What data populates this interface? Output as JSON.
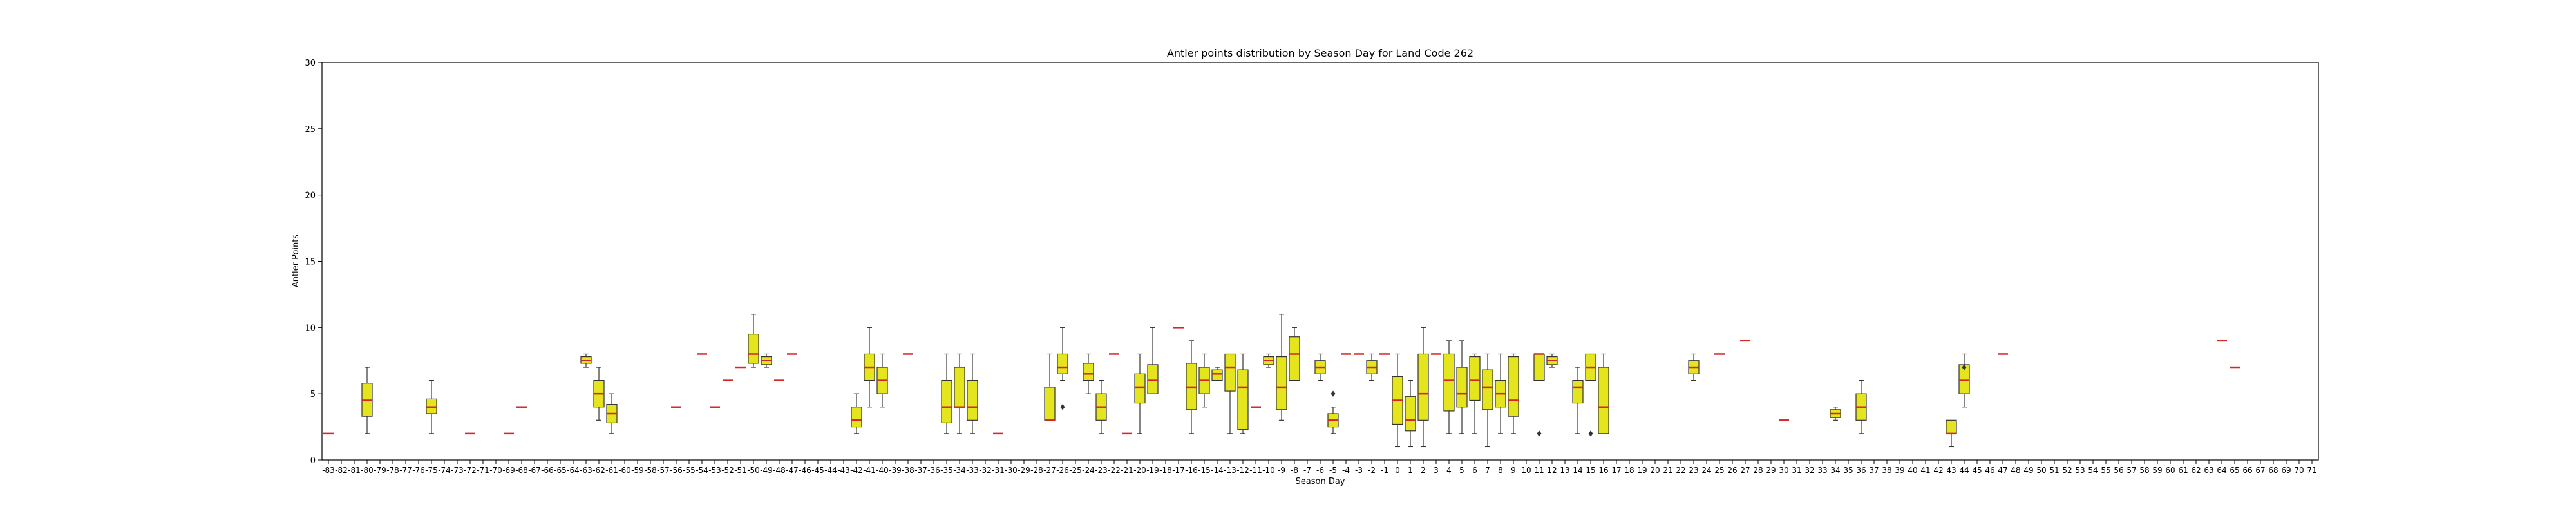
{
  "chart_data": {
    "type": "box",
    "title": "Antler points distribution by Season Day for Land Code 262",
    "xlabel": "Season Day",
    "ylabel": "Antler Points",
    "ylim": [
      0,
      30
    ],
    "yticks": [
      0,
      5,
      10,
      15,
      20,
      25,
      30
    ],
    "x_categories_range": [
      -83,
      71
    ],
    "grid": false,
    "legend": "none",
    "colors": {
      "box_fill": "#e5e51e",
      "median": "#d62728",
      "edge": "#333333",
      "axes": "#000000"
    },
    "boxes": [
      {
        "day": -83,
        "min": 2,
        "q1": 2,
        "median": 2,
        "q3": 2,
        "max": 2,
        "outliers": []
      },
      {
        "day": -80,
        "min": 2,
        "q1": 3.3,
        "median": 4.5,
        "q3": 5.8,
        "max": 7,
        "outliers": []
      },
      {
        "day": -75,
        "min": 2,
        "q1": 3.5,
        "median": 4,
        "q3": 4.6,
        "max": 6,
        "outliers": []
      },
      {
        "day": -72,
        "min": 2,
        "q1": 2,
        "median": 2,
        "q3": 2,
        "max": 2,
        "outliers": []
      },
      {
        "day": -69,
        "min": 2,
        "q1": 2,
        "median": 2,
        "q3": 2,
        "max": 2,
        "outliers": []
      },
      {
        "day": -68,
        "min": 4,
        "q1": 4,
        "median": 4,
        "q3": 4,
        "max": 4,
        "outliers": []
      },
      {
        "day": -63,
        "min": 7,
        "q1": 7.3,
        "median": 7.5,
        "q3": 7.8,
        "max": 8,
        "outliers": []
      },
      {
        "day": -62,
        "min": 3,
        "q1": 4,
        "median": 5,
        "q3": 6,
        "max": 7,
        "outliers": []
      },
      {
        "day": -61,
        "min": 2,
        "q1": 2.8,
        "median": 3.5,
        "q3": 4.2,
        "max": 5,
        "outliers": []
      },
      {
        "day": -56,
        "min": 4,
        "q1": 4,
        "median": 4,
        "q3": 4,
        "max": 4,
        "outliers": []
      },
      {
        "day": -54,
        "min": 8,
        "q1": 8,
        "median": 8,
        "q3": 8,
        "max": 8,
        "outliers": []
      },
      {
        "day": -53,
        "min": 4,
        "q1": 4,
        "median": 4,
        "q3": 4,
        "max": 4,
        "outliers": []
      },
      {
        "day": -52,
        "min": 6,
        "q1": 6,
        "median": 6,
        "q3": 6,
        "max": 6,
        "outliers": []
      },
      {
        "day": -51,
        "min": 7,
        "q1": 7,
        "median": 7,
        "q3": 7,
        "max": 7,
        "outliers": []
      },
      {
        "day": -50,
        "min": 7,
        "q1": 7.3,
        "median": 8,
        "q3": 9.5,
        "max": 11,
        "outliers": []
      },
      {
        "day": -49,
        "min": 7,
        "q1": 7.2,
        "median": 7.5,
        "q3": 7.8,
        "max": 8,
        "outliers": []
      },
      {
        "day": -48,
        "min": 6,
        "q1": 6,
        "median": 6,
        "q3": 6,
        "max": 6,
        "outliers": []
      },
      {
        "day": -47,
        "min": 8,
        "q1": 8,
        "median": 8,
        "q3": 8,
        "max": 8,
        "outliers": []
      },
      {
        "day": -42,
        "min": 2,
        "q1": 2.5,
        "median": 3,
        "q3": 4,
        "max": 5,
        "outliers": []
      },
      {
        "day": -41,
        "min": 4,
        "q1": 6,
        "median": 7,
        "q3": 8,
        "max": 10,
        "outliers": []
      },
      {
        "day": -40,
        "min": 4,
        "q1": 5,
        "median": 6,
        "q3": 7,
        "max": 8,
        "outliers": []
      },
      {
        "day": -38,
        "min": 8,
        "q1": 8,
        "median": 8,
        "q3": 8,
        "max": 8,
        "outliers": []
      },
      {
        "day": -35,
        "min": 2,
        "q1": 2.8,
        "median": 4,
        "q3": 6,
        "max": 8,
        "outliers": []
      },
      {
        "day": -34,
        "min": 2,
        "q1": 4,
        "median": 4,
        "q3": 7,
        "max": 8,
        "outliers": []
      },
      {
        "day": -33,
        "min": 2,
        "q1": 3,
        "median": 4,
        "q3": 6,
        "max": 8,
        "outliers": []
      },
      {
        "day": -31,
        "min": 2,
        "q1": 2,
        "median": 2,
        "q3": 2,
        "max": 2,
        "outliers": []
      },
      {
        "day": -27,
        "min": 3,
        "q1": 3,
        "median": 3,
        "q3": 5.5,
        "max": 8,
        "outliers": []
      },
      {
        "day": -26,
        "min": 6,
        "q1": 6.5,
        "median": 7,
        "q3": 8,
        "max": 10,
        "outliers": [
          4
        ]
      },
      {
        "day": -24,
        "min": 5,
        "q1": 6,
        "median": 6.5,
        "q3": 7.3,
        "max": 8,
        "outliers": []
      },
      {
        "day": -23,
        "min": 2,
        "q1": 3,
        "median": 4,
        "q3": 5,
        "max": 6,
        "outliers": []
      },
      {
        "day": -22,
        "min": 8,
        "q1": 8,
        "median": 8,
        "q3": 8,
        "max": 8,
        "outliers": []
      },
      {
        "day": -21,
        "min": 2,
        "q1": 2,
        "median": 2,
        "q3": 2,
        "max": 2,
        "outliers": []
      },
      {
        "day": -20,
        "min": 2,
        "q1": 4.3,
        "median": 5.5,
        "q3": 6.5,
        "max": 8,
        "outliers": []
      },
      {
        "day": -19,
        "min": 5,
        "q1": 5,
        "median": 6,
        "q3": 7.2,
        "max": 10,
        "outliers": []
      },
      {
        "day": -17,
        "min": 10,
        "q1": 10,
        "median": 10,
        "q3": 10,
        "max": 10,
        "outliers": []
      },
      {
        "day": -16,
        "min": 2,
        "q1": 3.8,
        "median": 5.5,
        "q3": 7.3,
        "max": 9,
        "outliers": []
      },
      {
        "day": -15,
        "min": 4,
        "q1": 5,
        "median": 6,
        "q3": 7,
        "max": 8,
        "outliers": []
      },
      {
        "day": -14,
        "min": 6,
        "q1": 6,
        "median": 6.5,
        "q3": 6.8,
        "max": 7,
        "outliers": []
      },
      {
        "day": -13,
        "min": 2,
        "q1": 5.2,
        "median": 7,
        "q3": 8,
        "max": 8,
        "outliers": []
      },
      {
        "day": -12,
        "min": 2,
        "q1": 2.3,
        "median": 5.5,
        "q3": 6.8,
        "max": 8,
        "outliers": []
      },
      {
        "day": -11,
        "min": 4,
        "q1": 4,
        "median": 4,
        "q3": 4,
        "max": 4,
        "outliers": []
      },
      {
        "day": -10,
        "min": 7,
        "q1": 7.2,
        "median": 7.5,
        "q3": 7.8,
        "max": 8,
        "outliers": []
      },
      {
        "day": -9,
        "min": 3,
        "q1": 3.8,
        "median": 5.5,
        "q3": 7.8,
        "max": 11,
        "outliers": []
      },
      {
        "day": -8,
        "min": 6,
        "q1": 6,
        "median": 8,
        "q3": 9.3,
        "max": 10,
        "outliers": []
      },
      {
        "day": -6,
        "min": 6,
        "q1": 6.5,
        "median": 7,
        "q3": 7.5,
        "max": 8,
        "outliers": []
      },
      {
        "day": -5,
        "min": 2,
        "q1": 2.5,
        "median": 3,
        "q3": 3.5,
        "max": 4,
        "outliers": [
          5
        ]
      },
      {
        "day": -4,
        "min": 8,
        "q1": 8,
        "median": 8,
        "q3": 8,
        "max": 8,
        "outliers": []
      },
      {
        "day": -3,
        "min": 8,
        "q1": 8,
        "median": 8,
        "q3": 8,
        "max": 8,
        "outliers": []
      },
      {
        "day": -2,
        "min": 6,
        "q1": 6.5,
        "median": 7,
        "q3": 7.5,
        "max": 8,
        "outliers": []
      },
      {
        "day": -1,
        "min": 8,
        "q1": 8,
        "median": 8,
        "q3": 8,
        "max": 8,
        "outliers": []
      },
      {
        "day": 0,
        "min": 1,
        "q1": 2.7,
        "median": 4.5,
        "q3": 6.3,
        "max": 8,
        "outliers": []
      },
      {
        "day": 1,
        "min": 1,
        "q1": 2.2,
        "median": 3,
        "q3": 4.8,
        "max": 6,
        "outliers": []
      },
      {
        "day": 2,
        "min": 1,
        "q1": 3,
        "median": 5,
        "q3": 8,
        "max": 10,
        "outliers": []
      },
      {
        "day": 3,
        "min": 8,
        "q1": 8,
        "median": 8,
        "q3": 8,
        "max": 8,
        "outliers": []
      },
      {
        "day": 4,
        "min": 2,
        "q1": 3.7,
        "median": 6,
        "q3": 8,
        "max": 9,
        "outliers": []
      },
      {
        "day": 5,
        "min": 2,
        "q1": 4,
        "median": 5,
        "q3": 7,
        "max": 9,
        "outliers": []
      },
      {
        "day": 6,
        "min": 2,
        "q1": 4.5,
        "median": 6,
        "q3": 7.8,
        "max": 8,
        "outliers": []
      },
      {
        "day": 7,
        "min": 1,
        "q1": 3.8,
        "median": 5.5,
        "q3": 6.8,
        "max": 8,
        "outliers": []
      },
      {
        "day": 8,
        "min": 2,
        "q1": 4,
        "median": 5,
        "q3": 6,
        "max": 8,
        "outliers": []
      },
      {
        "day": 9,
        "min": 2,
        "q1": 3.3,
        "median": 4.5,
        "q3": 7.8,
        "max": 8,
        "outliers": []
      },
      {
        "day": 11,
        "min": 6,
        "q1": 6,
        "median": 8,
        "q3": 8,
        "max": 8,
        "outliers": [
          2
        ]
      },
      {
        "day": 12,
        "min": 7,
        "q1": 7.2,
        "median": 7.5,
        "q3": 7.8,
        "max": 8,
        "outliers": []
      },
      {
        "day": 14,
        "min": 2,
        "q1": 4.3,
        "median": 5.5,
        "q3": 6,
        "max": 7,
        "outliers": []
      },
      {
        "day": 15,
        "min": 6,
        "q1": 6,
        "median": 7,
        "q3": 8,
        "max": 8,
        "outliers": [
          2
        ]
      },
      {
        "day": 16,
        "min": 2,
        "q1": 2,
        "median": 4,
        "q3": 7,
        "max": 8,
        "outliers": []
      },
      {
        "day": 23,
        "min": 6,
        "q1": 6.5,
        "median": 7,
        "q3": 7.5,
        "max": 8,
        "outliers": []
      },
      {
        "day": 25,
        "min": 8,
        "q1": 8,
        "median": 8,
        "q3": 8,
        "max": 8,
        "outliers": []
      },
      {
        "day": 27,
        "min": 9,
        "q1": 9,
        "median": 9,
        "q3": 9,
        "max": 9,
        "outliers": []
      },
      {
        "day": 30,
        "min": 3,
        "q1": 3,
        "median": 3,
        "q3": 3,
        "max": 3,
        "outliers": []
      },
      {
        "day": 34,
        "min": 3,
        "q1": 3.2,
        "median": 3.5,
        "q3": 3.8,
        "max": 4,
        "outliers": []
      },
      {
        "day": 36,
        "min": 2,
        "q1": 3,
        "median": 4,
        "q3": 5,
        "max": 6,
        "outliers": []
      },
      {
        "day": 43,
        "min": 1,
        "q1": 2,
        "median": 2,
        "q3": 3,
        "max": 3,
        "outliers": []
      },
      {
        "day": 44,
        "min": 4,
        "q1": 5,
        "median": 6,
        "q3": 7.2,
        "max": 8,
        "outliers": [
          7
        ]
      },
      {
        "day": 47,
        "min": 8,
        "q1": 8,
        "median": 8,
        "q3": 8,
        "max": 8,
        "outliers": []
      },
      {
        "day": 64,
        "min": 9,
        "q1": 9,
        "median": 9,
        "q3": 9,
        "max": 9,
        "outliers": []
      },
      {
        "day": 65,
        "min": 7,
        "q1": 7,
        "median": 7,
        "q3": 7,
        "max": 7,
        "outliers": []
      }
    ]
  }
}
